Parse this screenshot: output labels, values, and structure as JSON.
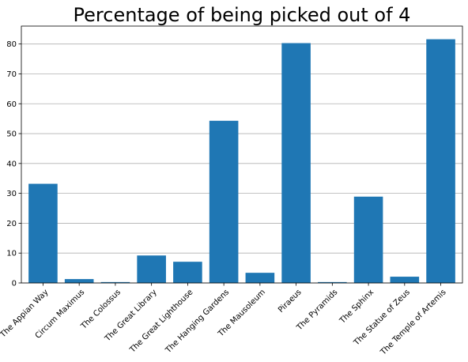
{
  "chart_data": {
    "type": "bar",
    "title": "Percentage of being picked out of 4",
    "xlabel": "",
    "ylabel": "",
    "categories": [
      "The Appian Way",
      "Circum Maximus",
      "The Colossus",
      "The Great Library",
      "The Great Lighthouse",
      "The Hanging Gardens",
      "The Mausoleum",
      "Piraeus",
      "The Pyramids",
      "The Sphinx",
      "The Statue of Zeus",
      "The Temple of Artemis"
    ],
    "values": [
      33.2,
      1.3,
      0.3,
      9.2,
      7.1,
      54.3,
      3.4,
      80.3,
      0.3,
      28.9,
      2.1,
      81.6
    ],
    "ylim": [
      0,
      86
    ],
    "yticks": [
      0,
      10,
      20,
      30,
      40,
      50,
      60,
      70,
      80
    ],
    "grid": "y",
    "colors": {
      "bar": "#1f77b4",
      "grid": "#b0b0b0",
      "axis": "#000000"
    }
  }
}
